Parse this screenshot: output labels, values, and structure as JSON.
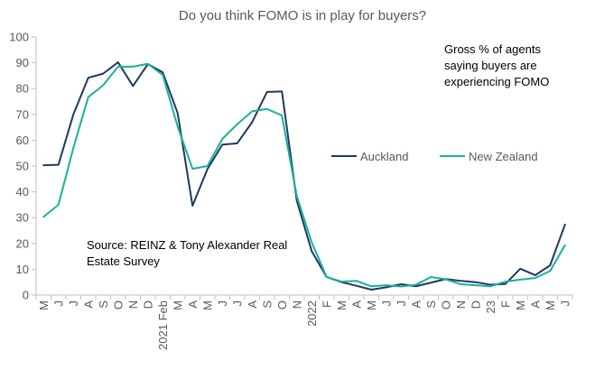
{
  "chart_data": {
    "type": "line",
    "title": "Do you think FOMO is in play for buyers?",
    "categories": [
      "M",
      "J",
      "J",
      "A",
      "S",
      "O",
      "N",
      "D",
      "2021 Feb",
      "M",
      "A",
      "M",
      "J",
      "J",
      "A",
      "S",
      "O",
      "N",
      "2022",
      "F",
      "M",
      "A",
      "M",
      "J",
      "J",
      "A",
      "S",
      "O",
      "N",
      "D",
      "23",
      "F",
      "M",
      "A",
      "M",
      "J"
    ],
    "ylim": [
      0,
      100
    ],
    "yticks": [
      0,
      10,
      20,
      30,
      40,
      50,
      60,
      70,
      80,
      90,
      100
    ],
    "grid": false,
    "legend_placement": "right-middle",
    "series": [
      {
        "name": "Auckland",
        "color": "#1f3864",
        "values": [
          50.3,
          50.5,
          70,
          84.2,
          85.8,
          90.2,
          81,
          89.5,
          86.3,
          70.5,
          34.6,
          48.8,
          58.3,
          58.8,
          67,
          78.7,
          78.9,
          36.5,
          17,
          7,
          5,
          3.6,
          2.1,
          3,
          4.2,
          3.4,
          4.8,
          6.2,
          5.5,
          5,
          4,
          4.3,
          10.2,
          7.7,
          11.5,
          27.3
        ]
      },
      {
        "name": "New Zealand",
        "color": "#1ab09a",
        "values": [
          30.3,
          35,
          57,
          76.7,
          81.3,
          88.5,
          88.5,
          89.6,
          85.3,
          65.3,
          48.9,
          50,
          60.5,
          66.2,
          71.2,
          72.1,
          69.6,
          38.3,
          20.4,
          7,
          5.2,
          5.5,
          3.4,
          3.8,
          3.3,
          4,
          7,
          6.1,
          4.2,
          3.8,
          3.4,
          5.2,
          6,
          6.6,
          9.3,
          19.3
        ]
      }
    ],
    "annotations": {
      "note_lines": [
        "Gross % of agents",
        "saying buyers are",
        "experiencing FOMO"
      ],
      "source_lines": [
        "Source: REINZ & Tony Alexander Real",
        "Estate Survey"
      ]
    }
  }
}
